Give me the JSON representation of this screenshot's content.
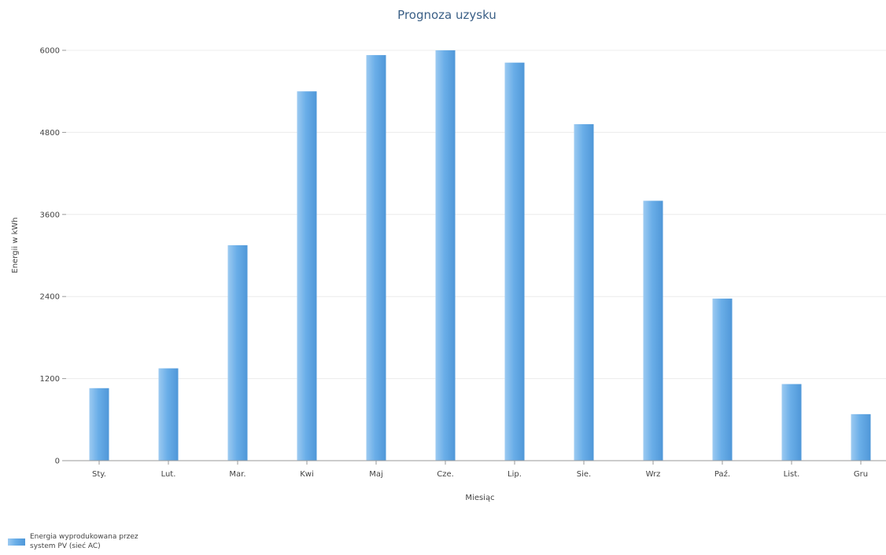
{
  "chart_data": {
    "type": "bar",
    "title": "Prognoza uzysku",
    "xlabel": "Miesiąc",
    "ylabel": "Energii w kWh",
    "ylim": [
      0,
      6000
    ],
    "yticks": [
      0,
      1200,
      2400,
      3600,
      4800,
      6000
    ],
    "grid": true,
    "legend_position": "bottom-left",
    "categories": [
      "Sty.",
      "Lut.",
      "Mar.",
      "Kwi",
      "Maj",
      "Cze.",
      "Lip.",
      "Sie.",
      "Wrz",
      "Paź.",
      "List.",
      "Gru"
    ],
    "series": [
      {
        "name": "Energia wyprodukowana przez system PV (sieć AC)",
        "legend_lines": [
          "Energia wyprodukowana przez",
          "system PV (sieć AC)"
        ],
        "color": "#6aaee8",
        "values": [
          1060,
          1350,
          3150,
          5400,
          5930,
          6000,
          5820,
          4920,
          3800,
          2370,
          1120,
          680
        ]
      }
    ]
  }
}
